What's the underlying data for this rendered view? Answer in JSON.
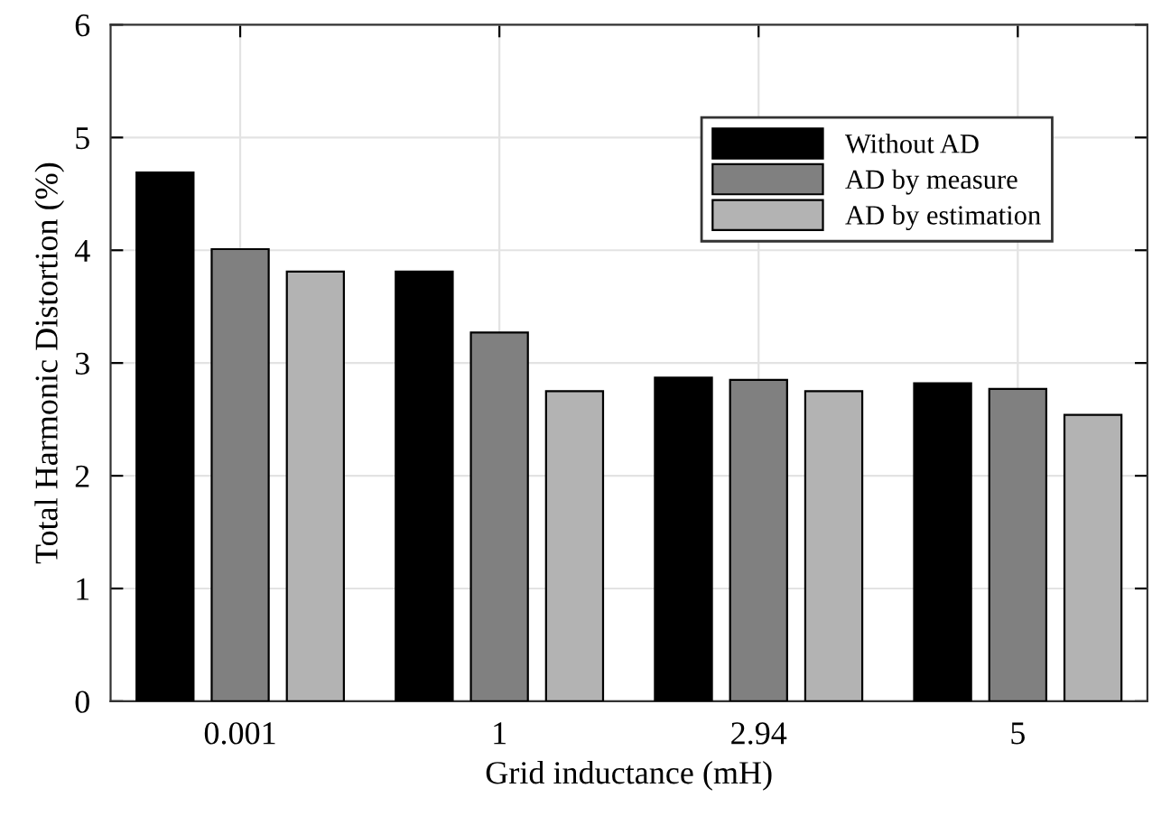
{
  "chart_data": {
    "type": "bar",
    "xlabel": "Grid inductance (mH)",
    "ylabel": "Total Harmonic Distortion (%)",
    "categories": [
      "0.001",
      "1",
      "2.94",
      "5"
    ],
    "series": [
      {
        "name": "Without AD",
        "color": "#000000",
        "values": [
          4.69,
          3.81,
          2.87,
          2.82
        ]
      },
      {
        "name": "AD by measure",
        "color": "#808080",
        "values": [
          4.01,
          3.27,
          2.85,
          2.77
        ]
      },
      {
        "name": "AD by estimation",
        "color": "#b3b3b3",
        "values": [
          3.81,
          2.75,
          2.75,
          2.54
        ]
      }
    ],
    "ylim": [
      0,
      6
    ],
    "yticks": [
      0,
      1,
      2,
      3,
      4,
      5,
      6
    ],
    "grid": true,
    "legend": "top right"
  }
}
